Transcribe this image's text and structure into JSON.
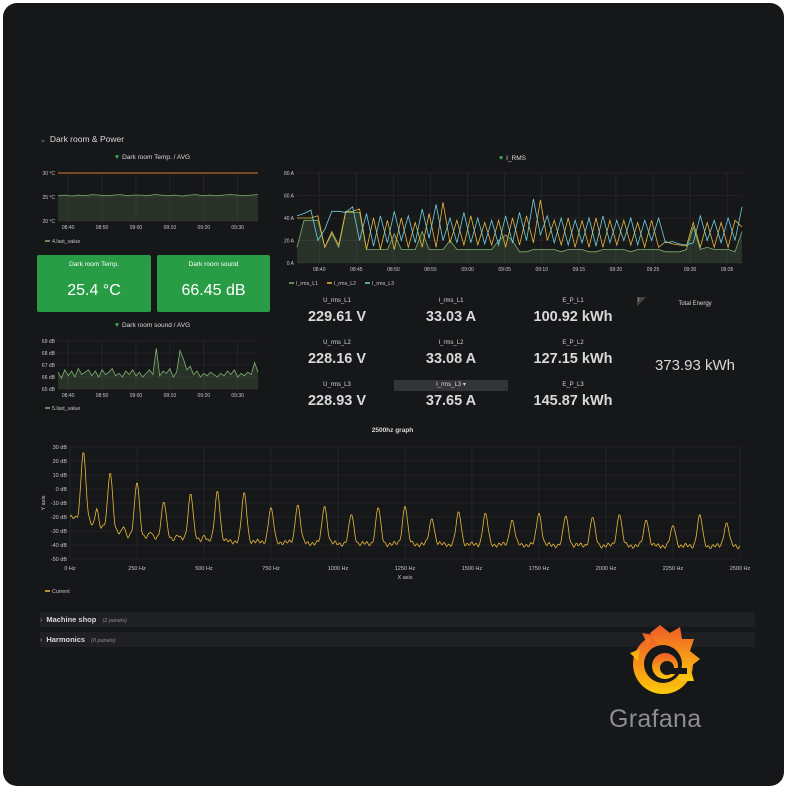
{
  "dashboard": {
    "row_title": "Dark room & Power",
    "collapsed_rows": [
      {
        "title": "Machine shop",
        "count": "(2 panels)"
      },
      {
        "title": "Harmonics",
        "count": "(0 panels)"
      }
    ],
    "logo_text": "Grafana"
  },
  "colors": {
    "green_stat": "#299c46",
    "series_green": "#7eb26d",
    "series_yellow": "#eab839",
    "series_cyan": "#6ed0e0",
    "threshold": "#e0752d",
    "spectrum": "#eab839"
  },
  "stats": {
    "temp": {
      "label": "Dark room Temp.",
      "value": "25.4 °C"
    },
    "sound": {
      "label": "Dark room sound",
      "value": "66.45 dB"
    }
  },
  "metrics": [
    {
      "label": "U_rms_L1",
      "value": "229.61 V"
    },
    {
      "label": "I_rms_L1",
      "value": "33.03 A"
    },
    {
      "label": "E_P_L1",
      "value": "100.92 kWh"
    },
    {
      "label": "U_rms_L2",
      "value": "228.16 V"
    },
    {
      "label": "I_rms_L2",
      "value": "33.08 A"
    },
    {
      "label": "E_P_L2",
      "value": "127.15 kWh"
    },
    {
      "label": "U_rms_L3",
      "value": "228.93 V"
    },
    {
      "label": "I_rms_L3 ▾",
      "value": "37.65 A"
    },
    {
      "label": "E_P_L3",
      "value": "145.87 kWh"
    }
  ],
  "total_energy": {
    "label": "Total Energy",
    "value": "373.93 kWh",
    "info_icon": "i"
  },
  "chart_data": [
    {
      "type": "area",
      "title": "Dark room Temp. / AVG",
      "y_ticks": [
        "30 °C",
        "25 °C",
        "20 °C"
      ],
      "ylim": [
        20,
        30
      ],
      "x_ticks": [
        "08:40",
        "08:50",
        "09:00",
        "09:10",
        "09:20",
        "09:30"
      ],
      "x_range": [
        "08:37",
        "09:36"
      ],
      "threshold": 30,
      "legend": "bottom-left",
      "series": [
        {
          "name": "4.last_value",
          "values": [
            25.3,
            25.4,
            25.2,
            25.4,
            25.3,
            25.5,
            25.4,
            25.3,
            25.4,
            25.5,
            25.3,
            25.4,
            25.4,
            25.3,
            25.5,
            25.4,
            25.3,
            25.4,
            25.2,
            25.4,
            25.5,
            25.3,
            25.4,
            25.3,
            25.4,
            25.5,
            25.4,
            25.3,
            25.4,
            25.5
          ]
        }
      ]
    },
    {
      "type": "area",
      "title": "Dark room sound / AVG",
      "y_ticks": [
        "69 dB",
        "68 dB",
        "67 dB",
        "66 dB",
        "65 dB"
      ],
      "ylim": [
        65,
        69
      ],
      "x_ticks": [
        "08:40",
        "08:50",
        "09:00",
        "09:10",
        "09:20",
        "09:30"
      ],
      "x_range": [
        "08:37",
        "09:36"
      ],
      "legend": "bottom-left",
      "series": [
        {
          "name": "5.last_value",
          "values": [
            66.4,
            65.9,
            66.6,
            66.1,
            66.5,
            66.0,
            66.7,
            66.2,
            66.4,
            66.6,
            66.1,
            66.5,
            66.0,
            66.6,
            66.2,
            66.4,
            66.7,
            66.1,
            66.3,
            66.0,
            66.5,
            66.2,
            66.6,
            66.1,
            66.4,
            66.0,
            66.3,
            66.6,
            66.2,
            68.4,
            66.1,
            66.5,
            66.3,
            66.7,
            66.0,
            66.4,
            68.2,
            67.5,
            66.6,
            66.9,
            66.2,
            66.5,
            66.0,
            66.3,
            66.1,
            66.4,
            66.2,
            66.0,
            66.3,
            66.1,
            66.5,
            66.2,
            66.6,
            66.0,
            66.3,
            66.1,
            66.4,
            66.2,
            67.2,
            66.4
          ]
        }
      ]
    },
    {
      "type": "line",
      "title": "I_RMS",
      "y_ticks": [
        "80 A",
        "60 A",
        "40 A",
        "20 A",
        "0 A"
      ],
      "ylim": [
        0,
        80
      ],
      "x_ticks": [
        "08:40",
        "08:45",
        "08:50",
        "08:55",
        "09:00",
        "09:05",
        "09:10",
        "09:15",
        "09:20",
        "09:25",
        "09:30",
        "09:35"
      ],
      "x_range": [
        "08:37",
        "09:37"
      ],
      "legend": "bottom-left",
      "series": [
        {
          "name": "I_rms_L1",
          "values": [
            14,
            38,
            38,
            38,
            14,
            26,
            14,
            45,
            45,
            45,
            12,
            12,
            12,
            12,
            26,
            12,
            12,
            12,
            28,
            12,
            12,
            12,
            20,
            12,
            12,
            12,
            12,
            12,
            12,
            20,
            25,
            20,
            10,
            10,
            12,
            12,
            12,
            12,
            10,
            12,
            12,
            12,
            10,
            10,
            12,
            12,
            12,
            12,
            10,
            12,
            12,
            12,
            12,
            10,
            10,
            10,
            12,
            32,
            12,
            14,
            12,
            12,
            12,
            10,
            28
          ]
        },
        {
          "name": "I_rms_L2",
          "values": [
            40,
            40,
            40,
            42,
            14,
            28,
            16,
            46,
            46,
            48,
            12,
            40,
            12,
            38,
            12,
            40,
            14,
            36,
            14,
            44,
            14,
            54,
            18,
            38,
            16,
            42,
            16,
            36,
            16,
            38,
            14,
            40,
            16,
            42,
            18,
            56,
            20,
            38,
            16,
            40,
            14,
            38,
            14,
            40,
            14,
            38,
            16,
            38,
            16,
            36,
            14,
            38,
            14,
            19,
            17,
            16,
            15,
            36,
            14,
            36,
            14,
            36,
            14,
            38,
            32
          ]
        },
        {
          "name": "I_rms_L3",
          "values": [
            42,
            44,
            47,
            20,
            30,
            46,
            46,
            45,
            50,
            20,
            44,
            15,
            42,
            18,
            46,
            20,
            42,
            18,
            48,
            22,
            52,
            20,
            40,
            18,
            45,
            18,
            40,
            17,
            38,
            16,
            42,
            18,
            45,
            20,
            57,
            25,
            42,
            18,
            40,
            16,
            38,
            18,
            40,
            15,
            42,
            18,
            38,
            20,
            40,
            16,
            38,
            20,
            40,
            18,
            19,
            17,
            16,
            18,
            42,
            20,
            38,
            18,
            40,
            20,
            50
          ]
        }
      ]
    },
    {
      "type": "line",
      "title": "2500hz graph",
      "xlabel": "X axis",
      "ylabel": "Y axis",
      "y_ticks": [
        "30 dB",
        "20 dB",
        "10 dB",
        "0 dB",
        "-10 dB",
        "-20 dB",
        "-30 dB",
        "-40 dB",
        "-50 dB"
      ],
      "ylim": [
        -50,
        30
      ],
      "x_ticks": [
        "0 Hz",
        "250 Hz",
        "500 Hz",
        "750 Hz",
        "1000 Hz",
        "1250 Hz",
        "1500 Hz",
        "1750 Hz",
        "2000 Hz",
        "2250 Hz",
        "2500 Hz"
      ],
      "xlim": [
        0,
        2500
      ],
      "legend": "bottom-left",
      "series": [
        {
          "name": "Current",
          "peak_frequencies_hz": [
            50,
            150,
            250,
            350,
            450,
            550,
            650,
            750,
            850,
            950,
            1050,
            1150,
            1250,
            1350,
            1450,
            1550,
            1650,
            1750,
            1850,
            1950,
            2050,
            2150,
            2250,
            2350,
            2450
          ],
          "peak_values_db": [
            27,
            12,
            5,
            -9,
            -3,
            -1,
            -2,
            -13,
            -11,
            -12,
            -18,
            -13,
            -12,
            -21,
            -16,
            -17,
            -22,
            -17,
            -19,
            -20,
            -18,
            -22,
            -26,
            -18,
            -24
          ],
          "minor_peak_frequencies_hz": [
            100,
            200,
            300,
            400,
            500
          ],
          "minor_peak_values_db": [
            -14,
            -27,
            -31,
            -33,
            -33
          ],
          "noise_floor_db": {
            "0": -20,
            "200": -33,
            "500": -37,
            "1000": -39,
            "2500": -41
          }
        }
      ]
    }
  ]
}
